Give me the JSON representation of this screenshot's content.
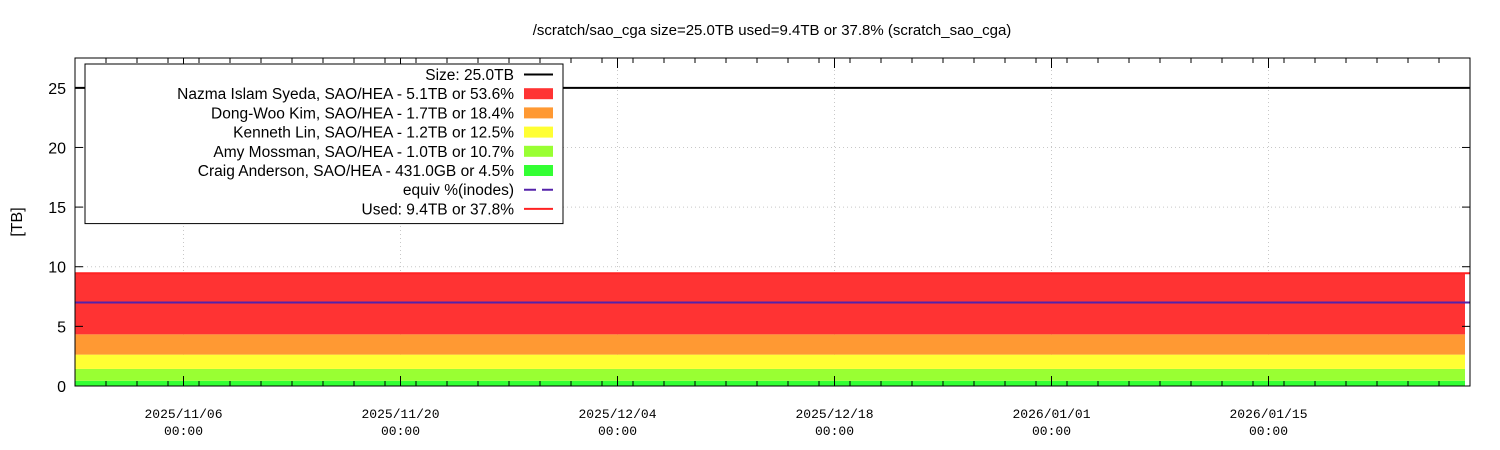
{
  "chart_data": {
    "type": "area",
    "title": "/scratch/sao_cga size=25.0TB used=9.4TB or 37.8% (scratch_sao_cga)",
    "xlabel": "",
    "ylabel": "[TB]",
    "ylim": [
      0,
      27.5
    ],
    "xlim": [
      "2025-10-30",
      "2026-01-28"
    ],
    "x_ticks": [
      {
        "date": "2025-11-06",
        "line1": "2025/11/06",
        "line2": "00:00"
      },
      {
        "date": "2025-11-20",
        "line1": "2025/11/20",
        "line2": "00:00"
      },
      {
        "date": "2025-12-04",
        "line1": "2025/12/04",
        "line2": "00:00"
      },
      {
        "date": "2025-12-18",
        "line1": "2025/12/18",
        "line2": "00:00"
      },
      {
        "date": "2026-01-01",
        "line1": "2026/01/01",
        "line2": "00:00"
      },
      {
        "date": "2026-01-15",
        "line1": "2026/01/15",
        "line2": "00:00"
      }
    ],
    "y_ticks": [
      0,
      5,
      10,
      15,
      20,
      25
    ],
    "grid": true,
    "legend_position": "top-left",
    "x_range": [
      "2025-10-30",
      "2026-01-28"
    ],
    "stacked_series": [
      {
        "name": "Craig Anderson, SAO/HEA - 431.0GB or 4.5%",
        "value": 0.431,
        "color": "#33ff33"
      },
      {
        "name": "Amy Mossman, SAO/HEA - 1.0TB or 10.7%",
        "value": 1.0,
        "color": "#99ff33"
      },
      {
        "name": "Kenneth Lin, SAO/HEA - 1.2TB or 12.5%",
        "value": 1.2,
        "color": "#ffff33"
      },
      {
        "name": "Dong-Woo Kim, SAO/HEA - 1.7TB or 18.4%",
        "value": 1.7,
        "color": "#ff9933"
      },
      {
        "name": "Nazma Islam Syeda, SAO/HEA - 5.1TB or 53.6%",
        "value": 5.1,
        "color": "#ff3333"
      }
    ],
    "lines": [
      {
        "name": "Size: 25.0TB",
        "value": 25.0,
        "color": "#000000",
        "style": "solid"
      },
      {
        "name": "equiv %(inodes)",
        "value": 7.0,
        "color": "#5522aa",
        "style": "dashed"
      },
      {
        "name": "Used: 9.4TB or 37.8%",
        "value": 9.45,
        "color": "#ff2222",
        "style": "solid"
      }
    ],
    "legend": [
      {
        "label": "Size: 25.0TB",
        "kind": "line",
        "color": "#000000"
      },
      {
        "label": "Nazma Islam Syeda, SAO/HEA - 5.1TB or 53.6%",
        "kind": "box",
        "color": "#ff3333"
      },
      {
        "label": "Dong-Woo Kim, SAO/HEA - 1.7TB or 18.4%",
        "kind": "box",
        "color": "#ff9933"
      },
      {
        "label": "Kenneth Lin, SAO/HEA - 1.2TB or 12.5%",
        "kind": "box",
        "color": "#ffff33"
      },
      {
        "label": "Amy Mossman, SAO/HEA - 1.0TB or 10.7%",
        "kind": "box",
        "color": "#99ff33"
      },
      {
        "label": "Craig Anderson, SAO/HEA - 431.0GB or 4.5%",
        "kind": "box",
        "color": "#33ff33"
      },
      {
        "label": "equiv %(inodes)",
        "kind": "dash",
        "color": "#5522aa"
      },
      {
        "label": "Used: 9.4TB or 37.8%",
        "kind": "line",
        "color": "#ff2222"
      }
    ]
  }
}
